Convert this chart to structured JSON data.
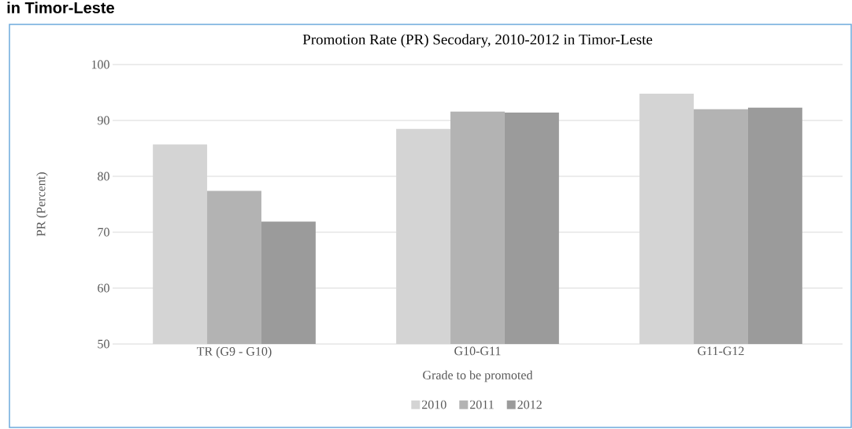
{
  "chart_data": {
    "type": "bar",
    "title": "Promotion Rate (PR) Secodary, 2010-2012 in Timor-Leste",
    "annotations": [
      "in Timor-Leste"
    ],
    "xlabel": "Grade to be promoted",
    "ylabel": "PR (Percent)",
    "categories": [
      "TR (G9 - G10)",
      "G10-G11",
      "G11-G12"
    ],
    "series": [
      {
        "name": "2010",
        "color": "#d4d4d4",
        "values": [
          85.7,
          88.5,
          94.8
        ]
      },
      {
        "name": "2011",
        "color": "#b3b3b3",
        "values": [
          77.4,
          91.6,
          92.0
        ]
      },
      {
        "name": "2012",
        "color": "#9b9b9b",
        "values": [
          71.9,
          91.4,
          92.3
        ]
      }
    ],
    "ylim": [
      50,
      100
    ],
    "yticks": [
      50,
      60,
      70,
      80,
      90,
      100
    ],
    "grid": "y",
    "legend": "bottom"
  }
}
